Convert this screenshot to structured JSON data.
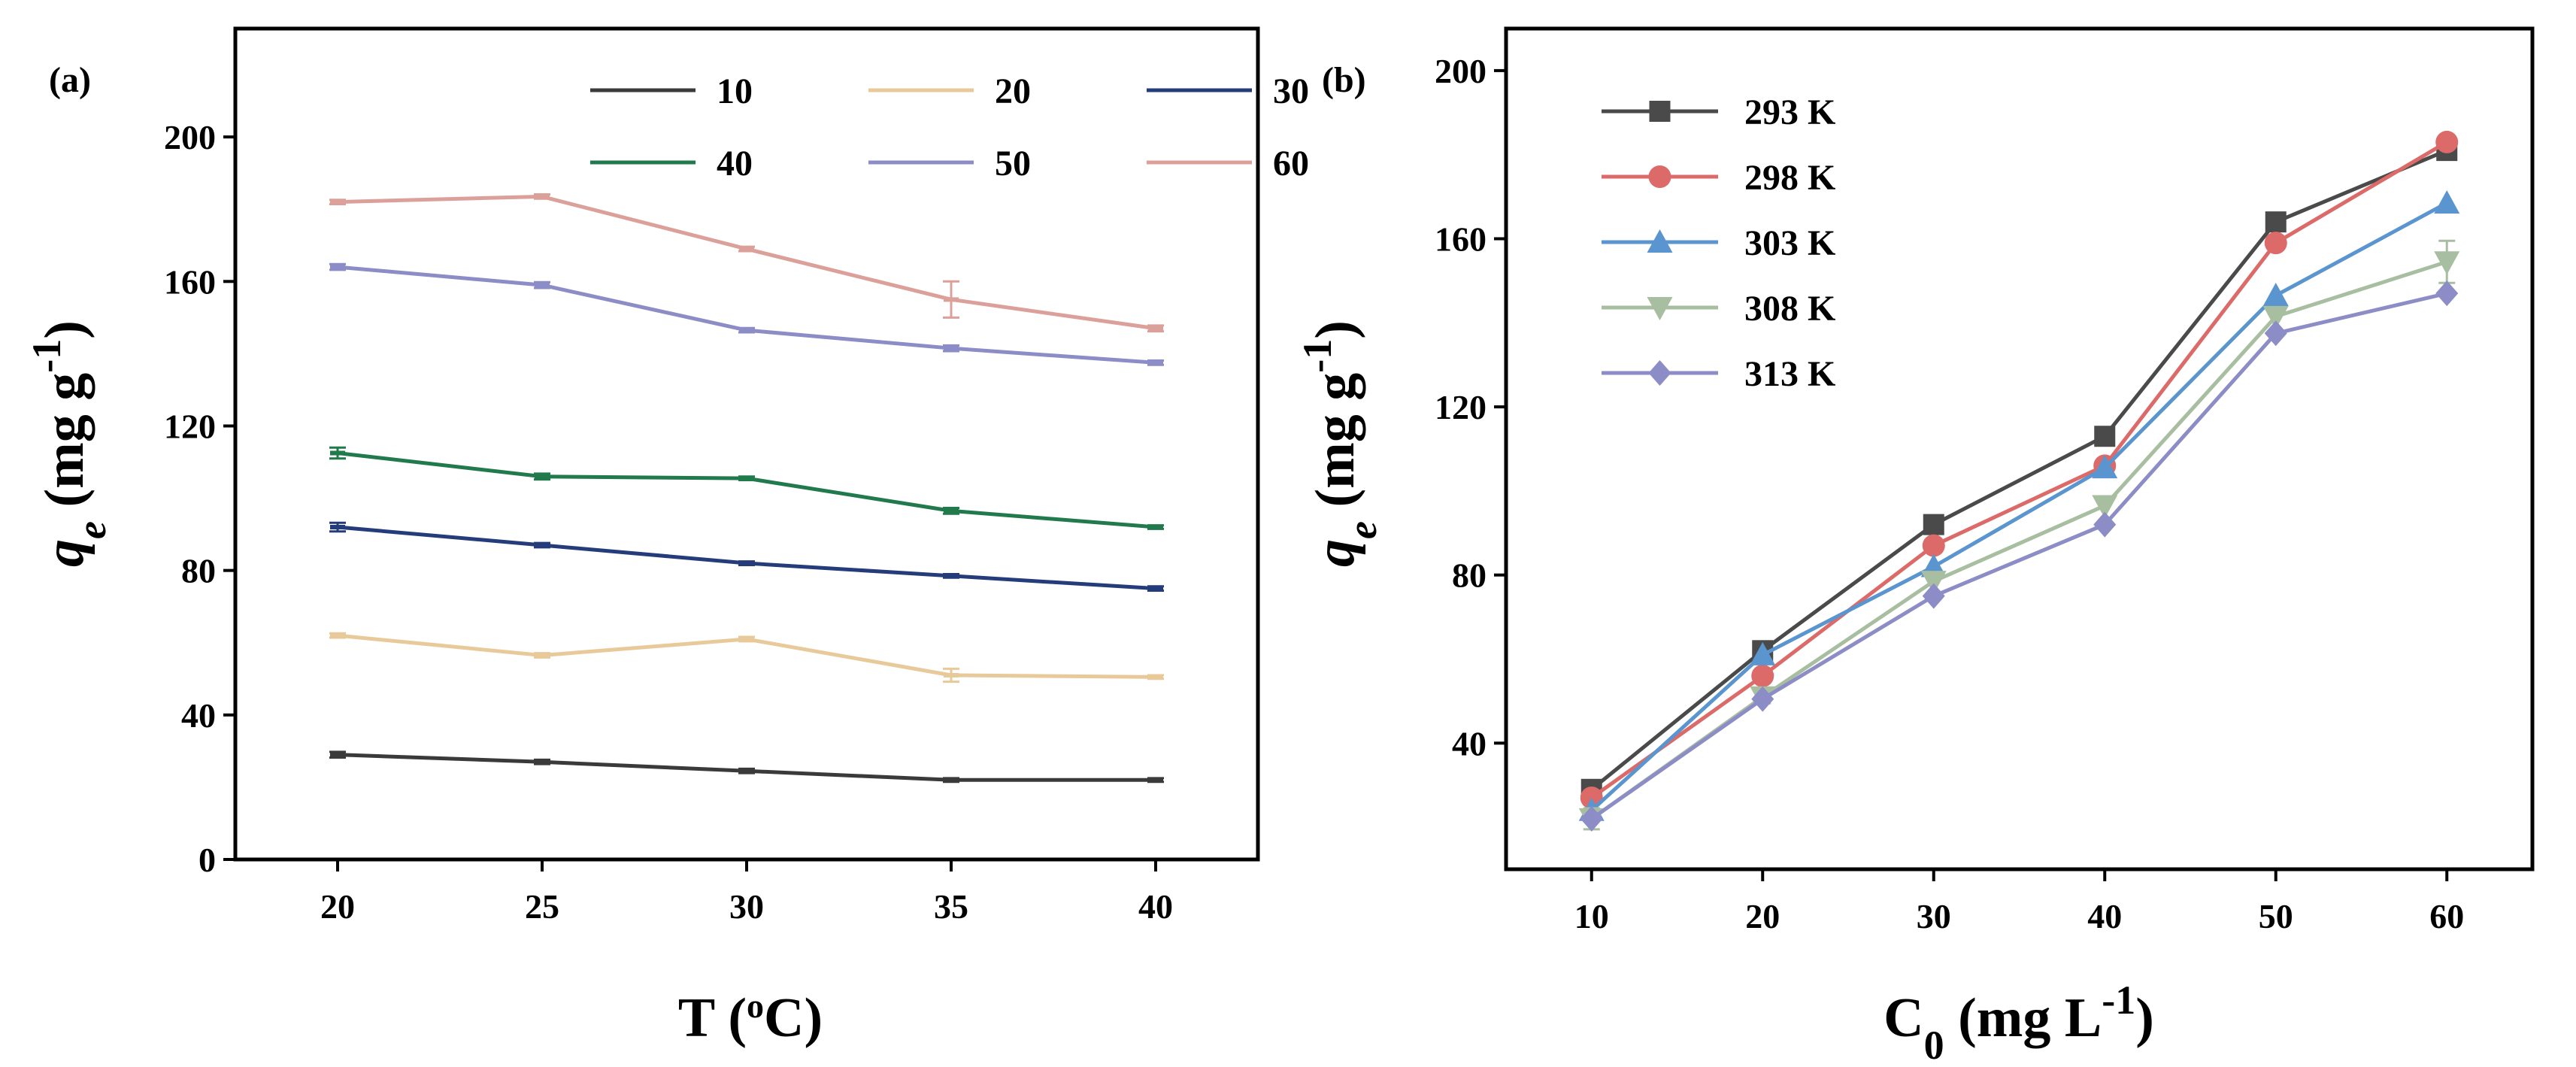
{
  "chart_data": [
    {
      "panel_label": "(a)",
      "type": "line",
      "xlabel": {
        "prefix": "T (",
        "sup": "o",
        "suffix": "C)"
      },
      "ylabel": {
        "q": "q",
        "sub": "e",
        "units": " (mg g",
        "sup": "-1",
        "close": ")"
      },
      "x": [
        20,
        25,
        30,
        35,
        40
      ],
      "xlim": [
        17.5,
        42.5
      ],
      "ylim": [
        0,
        230
      ],
      "xticks": [
        20,
        25,
        30,
        35,
        40
      ],
      "yticks": [
        0,
        40,
        80,
        120,
        160,
        200
      ],
      "legend_position": "top-right",
      "legend_columns": 3,
      "series": [
        {
          "name": "10",
          "color": "#3a3a3a",
          "values": [
            29,
            27,
            24.5,
            22,
            22
          ],
          "errors": [
            0.8,
            0.6,
            0.6,
            0.5,
            0.5
          ]
        },
        {
          "name": "20",
          "color": "#e8c99a",
          "values": [
            62,
            56.5,
            61,
            51,
            50.5
          ],
          "errors": [
            0.6,
            0.6,
            0.6,
            1.8,
            0.5
          ]
        },
        {
          "name": "30",
          "color": "#253c7a",
          "values": [
            92,
            87,
            82,
            78.5,
            75
          ],
          "errors": [
            1.2,
            0.6,
            0.5,
            0.5,
            0.6
          ]
        },
        {
          "name": "40",
          "color": "#217a4b",
          "values": [
            112.5,
            106,
            105.5,
            96.5,
            92
          ],
          "errors": [
            1.5,
            0.8,
            0.5,
            0.8,
            0.5
          ]
        },
        {
          "name": "50",
          "color": "#8c8cc6",
          "values": [
            164,
            159,
            146.5,
            141.5,
            137.5
          ],
          "errors": [
            0.8,
            0.8,
            0.6,
            0.8,
            0.6
          ]
        },
        {
          "name": "60",
          "color": "#dca09a",
          "values": [
            182,
            183.5,
            169,
            155,
            147
          ],
          "errors": [
            0.6,
            0.6,
            0.6,
            5,
            0.8
          ]
        }
      ]
    },
    {
      "panel_label": "(b)",
      "type": "line",
      "xlabel": {
        "base": "C",
        "sub": "0",
        "units": " (mg L",
        "sup": "-1",
        "close": ")"
      },
      "ylabel": {
        "q": "q",
        "sub": "e",
        "units": " (mg g",
        "sup": "-1",
        "close": ")"
      },
      "x": [
        10,
        20,
        30,
        40,
        50,
        60
      ],
      "xlim": [
        5,
        65
      ],
      "ylim": [
        10,
        210
      ],
      "xticks": [
        10,
        20,
        30,
        40,
        50,
        60
      ],
      "yticks": [
        40,
        80,
        120,
        160,
        200
      ],
      "legend_position": "top-left",
      "legend_columns": 1,
      "series": [
        {
          "name": "293 K",
          "color": "#4a4a4a",
          "marker": "square",
          "values": [
            29,
            62,
            92,
            113,
            164,
            181
          ],
          "errors": [
            0,
            0,
            0,
            0,
            0,
            0
          ]
        },
        {
          "name": "298 K",
          "color": "#db6a68",
          "marker": "circle",
          "values": [
            27,
            56,
            87,
            106,
            159,
            183
          ],
          "errors": [
            0,
            0,
            0,
            0,
            0,
            0
          ]
        },
        {
          "name": "303 K",
          "color": "#5b95cf",
          "marker": "triangle-up",
          "values": [
            24,
            61,
            82,
            105.5,
            146.5,
            168.5
          ],
          "errors": [
            0,
            0,
            0,
            0,
            0,
            0
          ]
        },
        {
          "name": "308 K",
          "color": "#a8bea0",
          "marker": "triangle-down",
          "values": [
            22,
            51,
            78.5,
            96.5,
            141.5,
            154.5
          ],
          "errors": [
            2.5,
            1.5,
            0,
            0,
            0,
            5
          ]
        },
        {
          "name": "313 K",
          "color": "#8c8cc6",
          "marker": "diamond",
          "values": [
            22,
            50.5,
            75,
            92,
            137.5,
            147
          ],
          "errors": [
            0,
            0,
            0,
            0,
            0,
            0
          ]
        }
      ]
    }
  ]
}
